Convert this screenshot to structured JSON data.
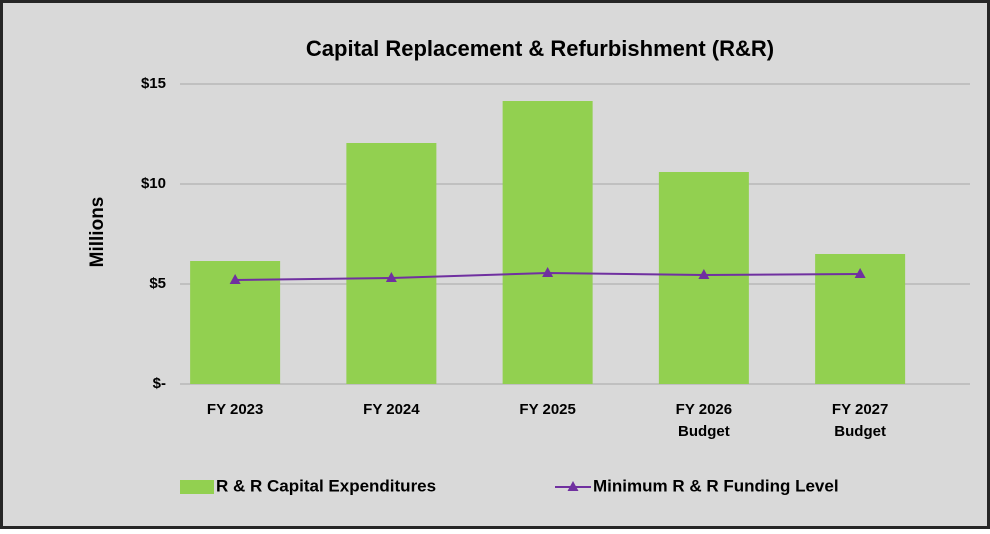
{
  "chart_data": {
    "type": "bar_line",
    "title": "Capital Replacement & Refurbishment (R&R)",
    "y_label": "Millions",
    "categories": [
      "FY 2023",
      "FY 2024",
      "FY 2025",
      "FY 2026\nBudget",
      "FY 2027\nBudget"
    ],
    "series": [
      {
        "name": "R & R Capital Expenditures",
        "type": "bar",
        "color": "#92d050",
        "values": [
          6.15,
          12.05,
          14.15,
          10.6,
          6.5
        ]
      },
      {
        "name": "Minimum R & R Funding Level",
        "type": "line",
        "color": "#7030a0",
        "values": [
          5.2,
          5.3,
          5.55,
          5.45,
          5.5
        ]
      }
    ],
    "ylim": [
      0,
      15
    ],
    "yticks": [
      {
        "value": 0,
        "label": "$-"
      },
      {
        "value": 5,
        "label": "$5"
      },
      {
        "value": 10,
        "label": "$10"
      },
      {
        "value": 15,
        "label": "$15"
      }
    ],
    "grid": true,
    "legend": "bottom"
  }
}
